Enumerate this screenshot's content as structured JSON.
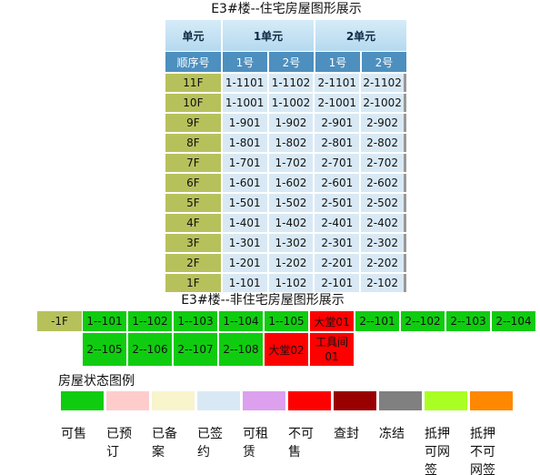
{
  "residential": {
    "title": "E3#楼--住宅房屋图形展示",
    "header": {
      "unit_label": "单元",
      "units": [
        "1单元",
        "2单元"
      ]
    },
    "subheader": {
      "order_label": "顺序号",
      "rooms": [
        "1号",
        "2号",
        "1号",
        "2号"
      ]
    },
    "rows": [
      {
        "floor": "11F",
        "rooms": [
          "1-1101",
          "1-1102",
          "2-1101",
          "2-1102"
        ]
      },
      {
        "floor": "10F",
        "rooms": [
          "1-1001",
          "1-1002",
          "2-1001",
          "2-1002"
        ]
      },
      {
        "floor": "9F",
        "rooms": [
          "1-901",
          "1-902",
          "2-901",
          "2-902"
        ]
      },
      {
        "floor": "8F",
        "rooms": [
          "1-801",
          "1-802",
          "2-801",
          "2-802"
        ]
      },
      {
        "floor": "7F",
        "rooms": [
          "1-701",
          "1-702",
          "2-701",
          "2-702"
        ]
      },
      {
        "floor": "6F",
        "rooms": [
          "1-601",
          "1-602",
          "2-601",
          "2-602"
        ]
      },
      {
        "floor": "5F",
        "rooms": [
          "1-501",
          "1-502",
          "2-501",
          "2-502"
        ]
      },
      {
        "floor": "4F",
        "rooms": [
          "1-401",
          "1-402",
          "2-401",
          "2-402"
        ]
      },
      {
        "floor": "3F",
        "rooms": [
          "1-301",
          "1-302",
          "2-301",
          "2-302"
        ]
      },
      {
        "floor": "2F",
        "rooms": [
          "1-201",
          "1-202",
          "2-201",
          "2-202"
        ]
      },
      {
        "floor": "1F",
        "rooms": [
          "1-101",
          "1-102",
          "2-101",
          "2-102"
        ]
      }
    ]
  },
  "non_residential": {
    "title": "E3#楼--非住宅房屋图形展示",
    "floor": "-1F",
    "row1": [
      {
        "label": "1--101",
        "status": "可售"
      },
      {
        "label": "1--102",
        "status": "可售"
      },
      {
        "label": "1--103",
        "status": "可售"
      },
      {
        "label": "1--104",
        "status": "可售"
      },
      {
        "label": "1--105",
        "status": "可售"
      },
      {
        "label": "大堂01",
        "status": "不可售"
      },
      {
        "label": "2--101",
        "status": "可售"
      },
      {
        "label": "2--102",
        "status": "可售"
      },
      {
        "label": "2--103",
        "status": "可售"
      },
      {
        "label": "2--104",
        "status": "可售"
      }
    ],
    "row2": [
      {
        "label": "2--105",
        "status": "可售"
      },
      {
        "label": "2--106",
        "status": "可售"
      },
      {
        "label": "2--107",
        "status": "可售"
      },
      {
        "label": "2--108",
        "status": "可售"
      },
      {
        "label": "大堂02",
        "status": "不可售"
      },
      {
        "label": "工具间01",
        "status": "不可售"
      }
    ]
  },
  "legend": {
    "title": "房屋状态图例",
    "items": [
      {
        "label": "可售",
        "color": "#10cc10"
      },
      {
        "label": "已预订",
        "color": "#ffcccc"
      },
      {
        "label": "已备案",
        "color": "#f8f4cc"
      },
      {
        "label": "已签约",
        "color": "#d8e9f5"
      },
      {
        "label": "可租赁",
        "color": "#dca0ee"
      },
      {
        "label": "不可售",
        "color": "#ff0000"
      },
      {
        "label": "查封",
        "color": "#990000"
      },
      {
        "label": "冻结",
        "color": "#808080"
      },
      {
        "label": "抵押可网签",
        "color": "#aaff22"
      },
      {
        "label": "抵押不可网签",
        "color": "#ff8800"
      }
    ]
  },
  "colors": {
    "floor": "#b7c15c",
    "header": "#4d8fbf",
    "room_signed": "#d8e9f5"
  }
}
